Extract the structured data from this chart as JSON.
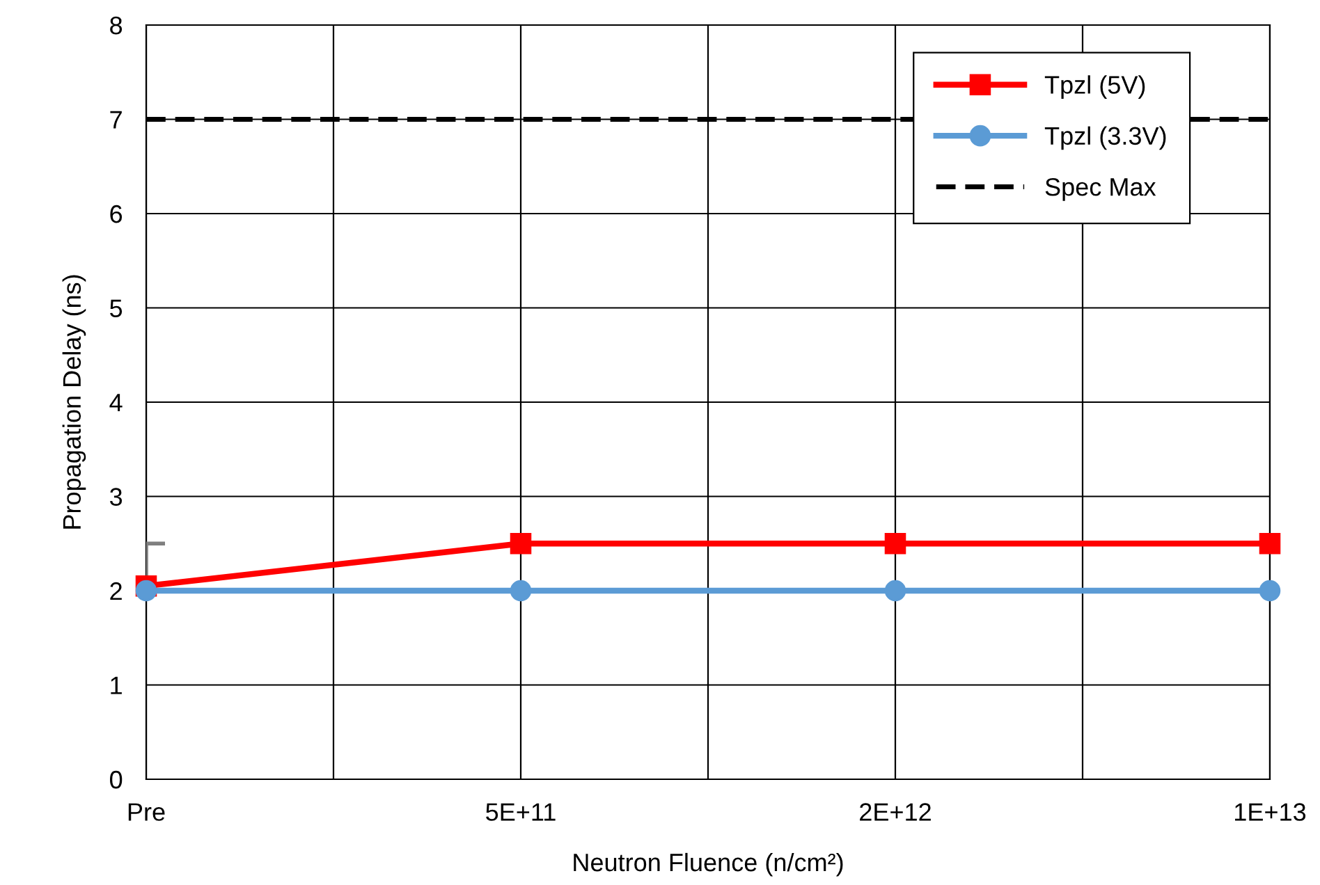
{
  "chart_data": {
    "type": "line",
    "xlabel": "Neutron Fluence (n/cm²)",
    "ylabel": "Propagation Delay (ns)",
    "categories": [
      "Pre",
      null,
      "5E+11",
      null,
      "2E+12",
      null,
      "1E+13"
    ],
    "ylim": [
      0,
      8
    ],
    "yticks": [
      0,
      1,
      2,
      3,
      4,
      5,
      6,
      7,
      8
    ],
    "series": [
      {
        "name": "Tpzl (5V)",
        "color": "#ff0000",
        "marker": "square",
        "values": [
          2.05,
          null,
          2.5,
          null,
          2.5,
          null,
          2.5
        ],
        "errors": [
          [
            2.05,
            2.5
          ],
          null,
          null,
          null,
          null,
          null,
          null
        ]
      },
      {
        "name": "Tpzl (3.3V)",
        "color": "#5b9bd5",
        "marker": "circle",
        "values": [
          2.0,
          null,
          2.0,
          null,
          2.0,
          null,
          2.0
        ]
      },
      {
        "name": "Spec Max",
        "color": "#000000",
        "marker": "none",
        "line_style": "dashed",
        "values": [
          7,
          null,
          7,
          null,
          7,
          null,
          7
        ]
      }
    ],
    "grid": true,
    "legend": "top right"
  }
}
